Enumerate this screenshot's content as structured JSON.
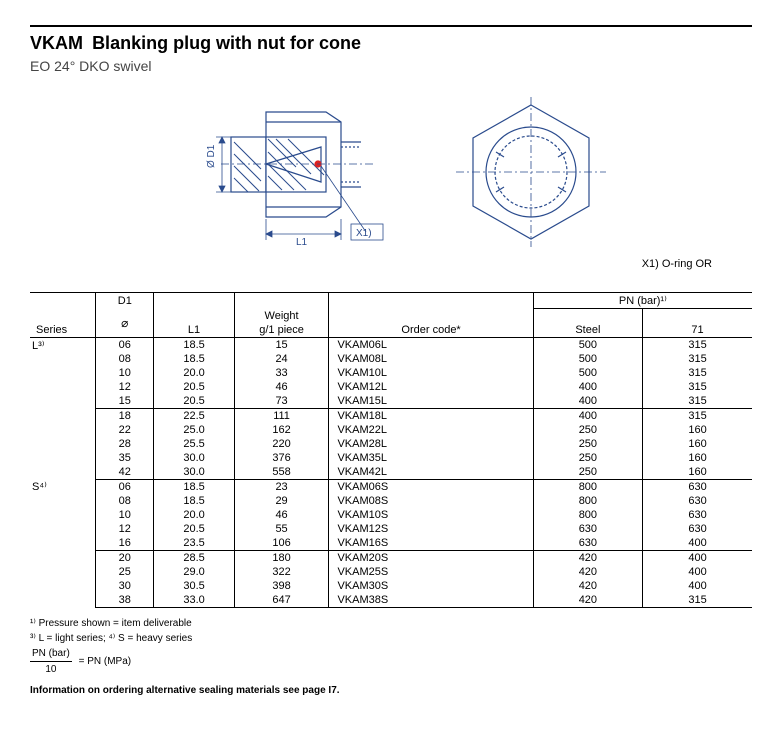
{
  "title_code": "VKAM",
  "title_desc": "Blanking plug with nut for cone",
  "subtitle": "EO 24° DKO swivel",
  "diagram": {
    "d1_label": "Ø D1",
    "l1_label": "L1",
    "x1_label": "X1)",
    "caption": "X1) O-ring OR"
  },
  "headers": {
    "series": "Series",
    "d1": "D1",
    "l1": "L1",
    "weight_l1": "Weight",
    "weight_l2": "g/1 piece",
    "order_code": "Order code*",
    "pn_group": "PN (bar)¹⁾",
    "steel": "Steel",
    "col71": "71"
  },
  "series_labels": {
    "L": "L³⁾",
    "S": "S⁴⁾"
  },
  "rows": [
    {
      "grp": "L",
      "d1": "06",
      "l1": "18.5",
      "wt": "15",
      "code": "VKAM06L",
      "steel": "500",
      "c71": "315",
      "first": true
    },
    {
      "grp": "L",
      "d1": "08",
      "l1": "18.5",
      "wt": "24",
      "code": "VKAM08L",
      "steel": "500",
      "c71": "315"
    },
    {
      "grp": "L",
      "d1": "10",
      "l1": "20.0",
      "wt": "33",
      "code": "VKAM10L",
      "steel": "500",
      "c71": "315"
    },
    {
      "grp": "L",
      "d1": "12",
      "l1": "20.5",
      "wt": "46",
      "code": "VKAM12L",
      "steel": "400",
      "c71": "315"
    },
    {
      "grp": "L",
      "d1": "15",
      "l1": "20.5",
      "wt": "73",
      "code": "VKAM15L",
      "steel": "400",
      "c71": "315",
      "sep": true
    },
    {
      "grp": "L",
      "d1": "18",
      "l1": "22.5",
      "wt": "111",
      "code": "VKAM18L",
      "steel": "400",
      "c71": "315",
      "top": true
    },
    {
      "grp": "L",
      "d1": "22",
      "l1": "25.0",
      "wt": "162",
      "code": "VKAM22L",
      "steel": "250",
      "c71": "160"
    },
    {
      "grp": "L",
      "d1": "28",
      "l1": "25.5",
      "wt": "220",
      "code": "VKAM28L",
      "steel": "250",
      "c71": "160"
    },
    {
      "grp": "L",
      "d1": "35",
      "l1": "30.0",
      "wt": "376",
      "code": "VKAM35L",
      "steel": "250",
      "c71": "160"
    },
    {
      "grp": "L",
      "d1": "42",
      "l1": "30.0",
      "wt": "558",
      "code": "VKAM42L",
      "steel": "250",
      "c71": "160",
      "sep": true
    },
    {
      "grp": "S",
      "d1": "06",
      "l1": "18.5",
      "wt": "23",
      "code": "VKAM06S",
      "steel": "800",
      "c71": "630",
      "first": true,
      "top": true
    },
    {
      "grp": "S",
      "d1": "08",
      "l1": "18.5",
      "wt": "29",
      "code": "VKAM08S",
      "steel": "800",
      "c71": "630"
    },
    {
      "grp": "S",
      "d1": "10",
      "l1": "20.0",
      "wt": "46",
      "code": "VKAM10S",
      "steel": "800",
      "c71": "630"
    },
    {
      "grp": "S",
      "d1": "12",
      "l1": "20.5",
      "wt": "55",
      "code": "VKAM12S",
      "steel": "630",
      "c71": "630"
    },
    {
      "grp": "S",
      "d1": "16",
      "l1": "23.5",
      "wt": "106",
      "code": "VKAM16S",
      "steel": "630",
      "c71": "400",
      "sep": true
    },
    {
      "grp": "S",
      "d1": "20",
      "l1": "28.5",
      "wt": "180",
      "code": "VKAM20S",
      "steel": "420",
      "c71": "400",
      "top": true
    },
    {
      "grp": "S",
      "d1": "25",
      "l1": "29.0",
      "wt": "322",
      "code": "VKAM25S",
      "steel": "420",
      "c71": "400"
    },
    {
      "grp": "S",
      "d1": "30",
      "l1": "30.5",
      "wt": "398",
      "code": "VKAM30S",
      "steel": "420",
      "c71": "400"
    },
    {
      "grp": "S",
      "d1": "38",
      "l1": "33.0",
      "wt": "647",
      "code": "VKAM38S",
      "steel": "420",
      "c71": "315",
      "sep": true
    }
  ],
  "footnotes": {
    "f1": "¹⁾ Pressure shown = item deliverable",
    "f3": "³⁾ L = light series; ⁴⁾ S = heavy series",
    "frac_num": "PN (bar)",
    "frac_den": "10",
    "frac_eq": "= PN (MPa)"
  },
  "info_line": "Information on ordering alternative sealing materials see page I7."
}
